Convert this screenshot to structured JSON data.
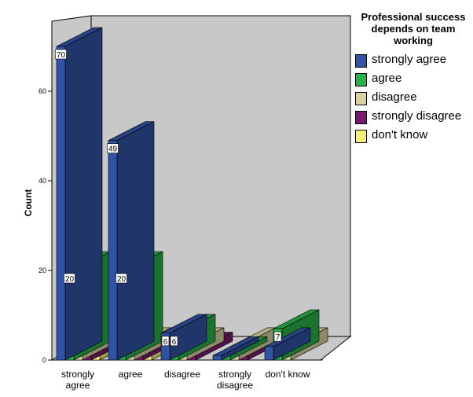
{
  "chart_data": {
    "type": "bar",
    "ylabel": "Count",
    "xlabel": "",
    "ylim": [
      0,
      75
    ],
    "yticks": [
      0,
      20,
      40,
      60
    ],
    "categories": [
      "strongly agree",
      "agree",
      "disagree",
      "strongly disagree",
      "don't know"
    ],
    "legend_title": "Professional success depends on team working",
    "legend_position": "right",
    "series": [
      {
        "name": "strongly agree",
        "color": "#3153a5",
        "values": [
          70,
          49,
          6,
          1,
          3
        ]
      },
      {
        "name": "agree",
        "color": "#28b34a",
        "values": [
          20,
          20,
          6,
          1,
          7
        ]
      },
      {
        "name": "disagree",
        "color": "#d8d3a0",
        "values": [
          2,
          3,
          3,
          3,
          3
        ]
      },
      {
        "name": "strongly disagree",
        "color": "#7b1870",
        "values": [
          3,
          1,
          2,
          1,
          0
        ]
      },
      {
        "name": "don't know",
        "color": "#f5ee78",
        "values": [
          1,
          2,
          0,
          0,
          0
        ]
      }
    ],
    "data_labels": [
      {
        "category": 0,
        "series": 0,
        "text": "70"
      },
      {
        "category": 0,
        "series": 1,
        "text": "20"
      },
      {
        "category": 1,
        "series": 0,
        "text": "49"
      },
      {
        "category": 1,
        "series": 1,
        "text": "20"
      },
      {
        "category": 2,
        "series": 0,
        "text": "6"
      },
      {
        "category": 2,
        "series": 1,
        "text": "6"
      },
      {
        "category": 4,
        "series": 1,
        "text": "7"
      }
    ]
  }
}
